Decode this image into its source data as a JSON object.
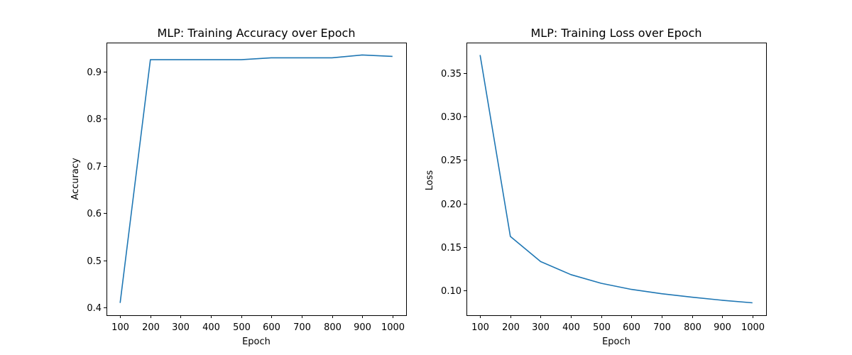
{
  "chart_data": [
    {
      "type": "line",
      "title": "MLP: Training Accuracy over Epoch",
      "xlabel": "Epoch",
      "ylabel": "Accuracy",
      "x": [
        100,
        200,
        300,
        400,
        500,
        600,
        700,
        800,
        900,
        1000
      ],
      "series": [
        {
          "values": [
            0.41,
            0.925,
            0.925,
            0.925,
            0.925,
            0.929,
            0.929,
            0.929,
            0.935,
            0.932
          ],
          "color": "#1f77b4"
        }
      ],
      "xticks": [
        100,
        200,
        300,
        400,
        500,
        600,
        700,
        800,
        900,
        1000
      ],
      "xtick_labels": [
        "100",
        "200",
        "300",
        "400",
        "500",
        "600",
        "700",
        "800",
        "900",
        "1000"
      ],
      "yticks": [
        0.4,
        0.5,
        0.6,
        0.7,
        0.8,
        0.9
      ],
      "ytick_labels": [
        "0.4",
        "0.5",
        "0.6",
        "0.7",
        "0.8",
        "0.9"
      ],
      "xlim": [
        55,
        1045
      ],
      "ylim": [
        0.3838,
        0.9612
      ],
      "grid": false,
      "legend": false
    },
    {
      "type": "line",
      "title": "MLP: Training Loss over Epoch",
      "xlabel": "Epoch",
      "ylabel": "Loss",
      "x": [
        100,
        200,
        300,
        400,
        500,
        600,
        700,
        800,
        900,
        1000
      ],
      "series": [
        {
          "values": [
            0.371,
            0.162,
            0.133,
            0.118,
            0.108,
            0.101,
            0.096,
            0.092,
            0.0885,
            0.0855
          ],
          "color": "#1f77b4"
        }
      ],
      "xticks": [
        100,
        200,
        300,
        400,
        500,
        600,
        700,
        800,
        900,
        1000
      ],
      "xtick_labels": [
        "100",
        "200",
        "300",
        "400",
        "500",
        "600",
        "700",
        "800",
        "900",
        "1000"
      ],
      "yticks": [
        0.1,
        0.15,
        0.2,
        0.25,
        0.3,
        0.35
      ],
      "ytick_labels": [
        "0.10",
        "0.15",
        "0.20",
        "0.25",
        "0.30",
        "0.35"
      ],
      "xlim": [
        55,
        1045
      ],
      "ylim": [
        0.0712,
        0.3853
      ],
      "grid": false,
      "legend": false
    }
  ]
}
